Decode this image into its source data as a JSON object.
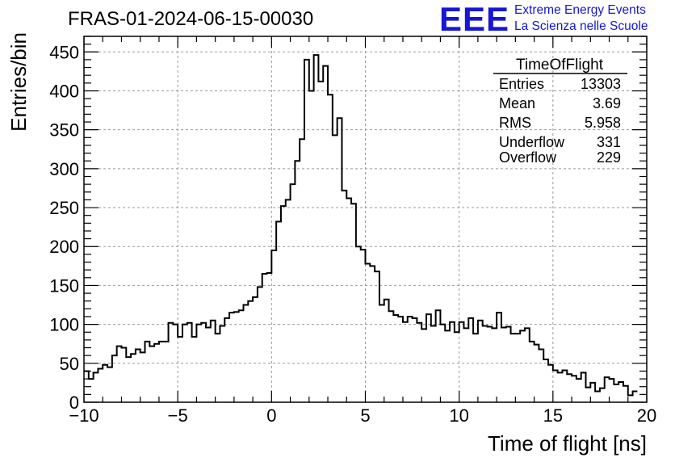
{
  "header": {
    "title": "FRAS-01-2024-06-15-00030",
    "logo_text": "EEE",
    "logo_line1": "Extreme Energy Events",
    "logo_line2": "La Scienza nelle Scuole",
    "logo_color": "#1616d6"
  },
  "stats_box": {
    "title": "TimeOfFlight",
    "rows": [
      {
        "label": "Entries",
        "value": "13303"
      },
      {
        "label": "Mean",
        "value": "3.69"
      },
      {
        "label": "RMS",
        "value": "5.958"
      },
      {
        "label": "Underflow",
        "value": "331"
      },
      {
        "label": "Overflow",
        "value": "229"
      }
    ]
  },
  "chart_data": {
    "type": "histogram",
    "xlabel": "Time of flight [ns]",
    "ylabel": "Entries/bin",
    "xlim": [
      -10,
      20
    ],
    "ylim": [
      0,
      470
    ],
    "bin_width": 0.25,
    "grid": true,
    "xticks": [
      -10,
      -5,
      0,
      5,
      10,
      15,
      20
    ],
    "yticks": [
      0,
      50,
      100,
      150,
      200,
      250,
      300,
      350,
      400,
      450
    ],
    "counts": [
      40,
      30,
      38,
      43,
      48,
      45,
      60,
      72,
      70,
      58,
      62,
      68,
      64,
      78,
      72,
      75,
      78,
      78,
      102,
      100,
      84,
      100,
      102,
      84,
      100,
      102,
      96,
      105,
      88,
      98,
      108,
      115,
      116,
      118,
      125,
      130,
      135,
      148,
      165,
      166,
      195,
      232,
      252,
      260,
      280,
      310,
      338,
      440,
      400,
      446,
      412,
      432,
      395,
      343,
      365,
      272,
      262,
      255,
      200,
      196,
      178,
      175,
      168,
      125,
      132,
      117,
      112,
      110,
      103,
      110,
      108,
      102,
      94,
      113,
      98,
      118,
      100,
      92,
      103,
      90,
      103,
      95,
      108,
      88,
      105,
      98,
      97,
      95,
      115,
      96,
      97,
      88,
      88,
      92,
      95,
      78,
      74,
      68,
      55,
      48,
      41,
      38,
      41,
      36,
      34,
      30,
      38,
      19,
      25,
      14,
      18,
      32,
      30,
      23,
      26,
      21,
      9,
      14
    ]
  }
}
